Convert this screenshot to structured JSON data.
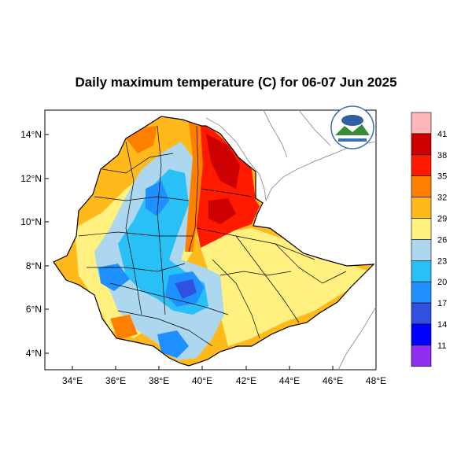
{
  "title": "Daily maximum temperature (C) for 06-07 Jun 2025",
  "axes": {
    "x_ticks": [
      "34°E",
      "36°E",
      "38°E",
      "40°E",
      "42°E",
      "44°E",
      "46°E",
      "48°E"
    ],
    "y_ticks": [
      "14°N",
      "12°N",
      "10°N",
      "8°N",
      "6°N",
      "4°N"
    ],
    "x_range_deg": [
      33,
      48.2
    ],
    "y_range_deg": [
      3.1,
      15.0
    ]
  },
  "colorbar": {
    "levels": [
      "41",
      "38",
      "35",
      "32",
      "29",
      "26",
      "23",
      "20",
      "17",
      "14",
      "11"
    ],
    "colors_top_to_bottom": [
      "#ffb6b9",
      "#cc0000",
      "#ff1a00",
      "#ff8000",
      "#ffb91a",
      "#fff080",
      "#acd7ef",
      "#28c0f5",
      "#1e90ff",
      "#3050e0",
      "#0000ff",
      "#8f2ef0"
    ]
  },
  "logo": {
    "caption": "Ethiopian Meteorology Institute"
  },
  "colors": {
    "hot_very": "#cc0000",
    "hot": "#ff1a00",
    "warm": "#ff8000",
    "mild": "#ffb91a",
    "pale": "#fff080",
    "cool_light": "#acd7ef",
    "cool": "#28c0f5",
    "cold": "#1e90ff",
    "coldest": "#3050e0"
  }
}
